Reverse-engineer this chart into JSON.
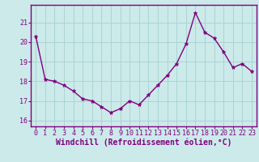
{
  "x": [
    0,
    1,
    2,
    3,
    4,
    5,
    6,
    7,
    8,
    9,
    10,
    11,
    12,
    13,
    14,
    15,
    16,
    17,
    18,
    19,
    20,
    21,
    22,
    23
  ],
  "y": [
    20.3,
    18.1,
    18.0,
    17.8,
    17.5,
    17.1,
    17.0,
    16.7,
    16.4,
    16.6,
    17.0,
    16.8,
    17.3,
    17.8,
    18.3,
    18.9,
    19.9,
    21.5,
    20.5,
    20.2,
    19.5,
    18.7,
    18.9,
    18.5
  ],
  "line_color": "#800080",
  "marker": "*",
  "marker_size": 3.5,
  "bg_color": "#cceaea",
  "grid_color": "#aad4d4",
  "xlabel": "Windchill (Refroidissement éolien,°C)",
  "xlabel_fontsize": 7,
  "tick_fontsize": 6,
  "yticks": [
    16,
    17,
    18,
    19,
    20,
    21
  ],
  "ylim": [
    15.7,
    21.9
  ],
  "xlim": [
    -0.5,
    23.5
  ],
  "spine_color": "#800080",
  "line_width": 1.0
}
